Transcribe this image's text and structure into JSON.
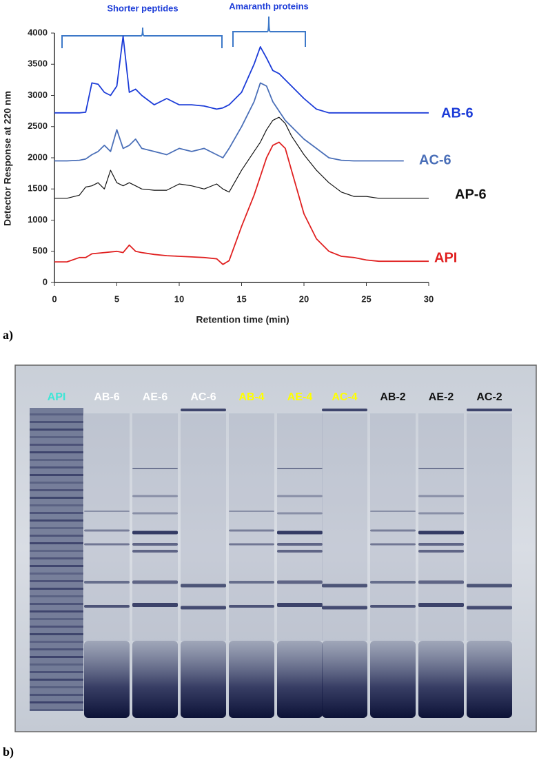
{
  "chart_data": {
    "type": "line",
    "x_label": "Retention time (min)",
    "y_label": "Detector Response at 220 nm",
    "annotations": [
      "Shorter peptides",
      "Amaranth proteins"
    ],
    "xlim": [
      0,
      30
    ],
    "ylim": [
      0,
      4000
    ],
    "xticks": [
      0,
      5,
      10,
      15,
      20,
      25,
      30
    ],
    "yticks": [
      0,
      500,
      1000,
      1500,
      2000,
      2500,
      3000,
      3500,
      4000
    ],
    "x": [
      0,
      1,
      2,
      2.5,
      3,
      3.5,
      4,
      4.5,
      5,
      5.5,
      6,
      6.5,
      7,
      8,
      9,
      10,
      11,
      12,
      13,
      13.5,
      14,
      15,
      16,
      16.5,
      17,
      17.5,
      18,
      18.5,
      19,
      20,
      21,
      22,
      23,
      24,
      25,
      26,
      28,
      30
    ],
    "series": [
      {
        "name": "AB-6",
        "color": "#1c3cd8",
        "values": [
          2720,
          2720,
          2720,
          2730,
          3200,
          3180,
          3050,
          3000,
          3150,
          3950,
          3050,
          3100,
          3000,
          2850,
          2950,
          2850,
          2850,
          2830,
          2780,
          2800,
          2850,
          3050,
          3500,
          3780,
          3600,
          3400,
          3350,
          3250,
          3150,
          2950,
          2780,
          2720,
          2720,
          2720,
          2720,
          2720,
          2720,
          2720
        ]
      },
      {
        "name": "AC-6",
        "color": "#4a6fb8",
        "values": [
          1950,
          1950,
          1960,
          1980,
          2050,
          2100,
          2200,
          2100,
          2450,
          2150,
          2200,
          2300,
          2150,
          2100,
          2050,
          2150,
          2100,
          2150,
          2050,
          2000,
          2150,
          2500,
          2900,
          3200,
          3150,
          2900,
          2750,
          2600,
          2500,
          2300,
          2150,
          2000,
          1960,
          1950,
          1950,
          1950,
          1950,
          null
        ]
      },
      {
        "name": "AP-6",
        "color": "#111111",
        "values": [
          1350,
          1350,
          1400,
          1530,
          1550,
          1600,
          1500,
          1800,
          1600,
          1550,
          1600,
          1550,
          1500,
          1480,
          1480,
          1580,
          1550,
          1500,
          1580,
          1500,
          1450,
          1800,
          2100,
          2250,
          2450,
          2600,
          2650,
          2550,
          2350,
          2050,
          1800,
          1600,
          1450,
          1380,
          1380,
          1350,
          1350,
          1350
        ]
      },
      {
        "name": "API",
        "color": "#e02020",
        "values": [
          330,
          330,
          400,
          400,
          460,
          470,
          480,
          490,
          500,
          480,
          600,
          500,
          480,
          450,
          430,
          420,
          410,
          400,
          380,
          290,
          350,
          900,
          1400,
          1700,
          2000,
          2200,
          2250,
          2150,
          1800,
          1100,
          700,
          500,
          420,
          400,
          360,
          340,
          340,
          340
        ]
      }
    ]
  },
  "panel_labels": [
    "a)",
    "b)"
  ],
  "gel": {
    "lanes": [
      {
        "label": "API",
        "color": "#3ee6d6"
      },
      {
        "label": "AB-6",
        "color": "#ffffff"
      },
      {
        "label": "AE-6",
        "color": "#ffffff"
      },
      {
        "label": "AC-6",
        "color": "#ffffff"
      },
      {
        "label": "AB-4",
        "color": "#ffff00"
      },
      {
        "label": "AE-4",
        "color": "#ffff00"
      },
      {
        "label": "AC-4",
        "color": "#ffff00"
      },
      {
        "label": "AB-2",
        "color": "#111111"
      },
      {
        "label": "AE-2",
        "color": "#111111"
      },
      {
        "label": "AC-2",
        "color": "#111111"
      }
    ]
  }
}
